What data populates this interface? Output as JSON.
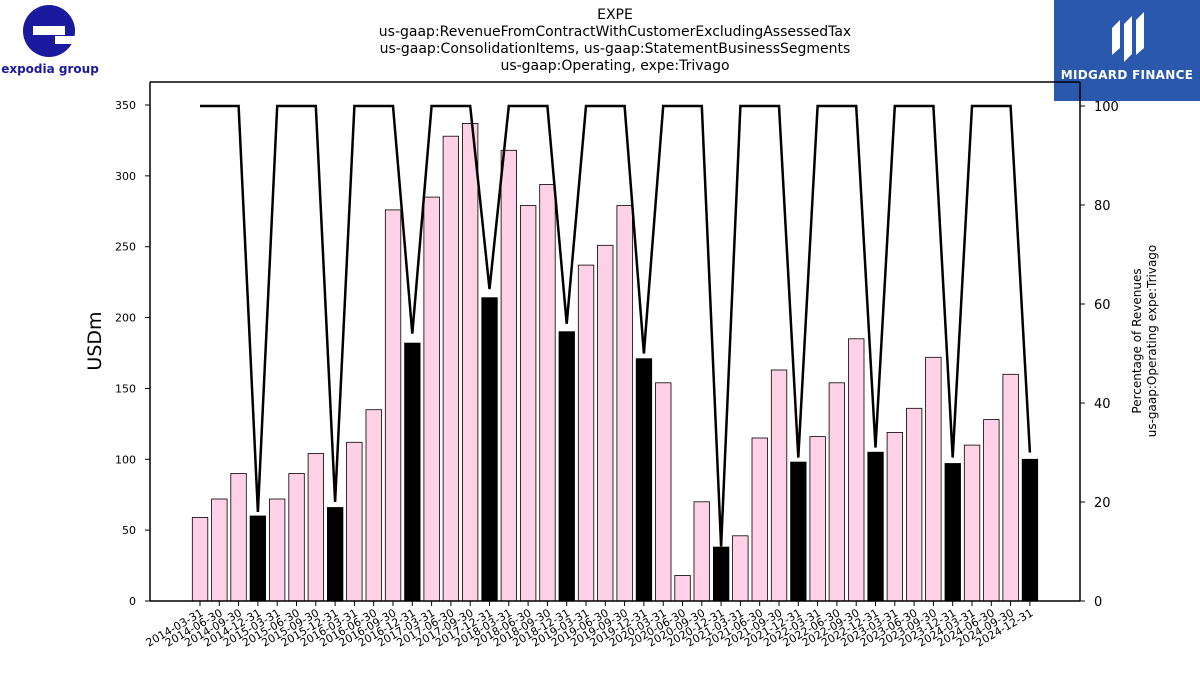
{
  "brand": {
    "left_logo_text": "expodia group",
    "right_logo_text": "MIDGARD FINANCE"
  },
  "title_lines": [
    "EXPE",
    "us-gaap:RevenueFromContractWithCustomerExcludingAssessedTax",
    "us-gaap:ConsolidationItems, us-gaap:StatementBusinessSegments",
    "us-gaap:Operating, expe:Trivago"
  ],
  "colors": {
    "bar_default": "#ffd1e6",
    "bar_highlight": "#000000",
    "line": "#000000",
    "logo_blue": "#1a1a9e",
    "finance_bg": "#2a58ad"
  },
  "chart_data": {
    "type": "bar",
    "ylabel": "USDm",
    "y2label_lines": [
      "Percentage of Revenues",
      "us-gaap:Operating expe:Trivago"
    ],
    "ylim": [
      0,
      350
    ],
    "y2lim": [
      0,
      100
    ],
    "yticks": [
      0,
      50,
      100,
      150,
      200,
      250,
      300,
      350
    ],
    "y2ticks": [
      0,
      20,
      40,
      60,
      80,
      100
    ],
    "categories": [
      "2014-03-31",
      "2014-06-30",
      "2014-09-30",
      "2014-12-31",
      "2015-03-31",
      "2015-06-30",
      "2015-09-30",
      "2015-12-31",
      "2016-03-31",
      "2016-06-30",
      "2016-09-30",
      "2016-12-31",
      "2017-03-31",
      "2017-06-30",
      "2017-09-30",
      "2017-12-31",
      "2018-03-31",
      "2018-06-30",
      "2018-09-30",
      "2018-12-31",
      "2019-03-31",
      "2019-06-30",
      "2019-09-30",
      "2019-12-31",
      "2020-03-31",
      "2020-06-30",
      "2020-09-30",
      "2020-12-31",
      "2021-03-31",
      "2021-06-30",
      "2021-09-30",
      "2021-12-31",
      "2022-03-31",
      "2022-06-30",
      "2022-09-30",
      "2022-12-31",
      "2023-03-31",
      "2023-06-30",
      "2023-09-30",
      "2023-12-31",
      "2024-03-31",
      "2024-06-30",
      "2024-09-30",
      "2024-12-31"
    ],
    "values": [
      59,
      72,
      90,
      60,
      72,
      90,
      104,
      66,
      112,
      135,
      276,
      182,
      285,
      328,
      337,
      214,
      318,
      279,
      294,
      190,
      237,
      251,
      279,
      171,
      154,
      18,
      70,
      38,
      46,
      115,
      163,
      98,
      116,
      154,
      185,
      105,
      119,
      136,
      172,
      97,
      110,
      128,
      160,
      100
    ],
    "highlight": [
      false,
      false,
      false,
      true,
      false,
      false,
      false,
      true,
      false,
      false,
      false,
      true,
      false,
      false,
      false,
      true,
      false,
      false,
      false,
      true,
      false,
      false,
      false,
      true,
      false,
      false,
      false,
      true,
      false,
      false,
      false,
      true,
      false,
      false,
      false,
      true,
      false,
      false,
      false,
      true,
      false,
      false,
      false,
      true
    ],
    "series": [
      {
        "values": [
          100,
          100,
          100,
          18,
          100,
          100,
          100,
          20,
          100,
          100,
          100,
          54,
          100,
          100,
          100,
          63,
          100,
          100,
          100,
          56,
          100,
          100,
          100,
          50,
          100,
          100,
          100,
          11,
          100,
          100,
          100,
          29,
          100,
          100,
          100,
          31,
          100,
          100,
          100,
          29,
          100,
          100,
          100,
          30
        ]
      }
    ]
  }
}
